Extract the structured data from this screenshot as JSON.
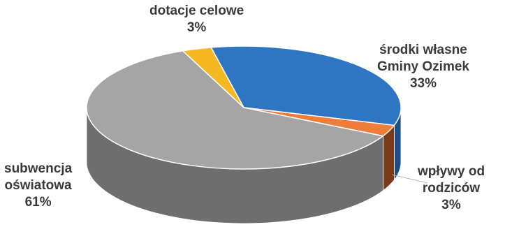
{
  "chart_data": {
    "type": "pie",
    "style": "3d",
    "title": "",
    "legend": "none",
    "slices": [
      {
        "name": "środki własne",
        "name_line2": "Gminy Ozimek",
        "value": 33,
        "label": "33%",
        "color": "#2e75c2",
        "side_color": "#1c4f86"
      },
      {
        "name": "wpływy od",
        "name_line2": "rodziców",
        "value": 3,
        "label": "3%",
        "color": "#ee7d3a",
        "side_color": "#7a3c16"
      },
      {
        "name": "subwencja",
        "name_line2": "oświatowa",
        "value": 61,
        "label": "61%",
        "color": "#a5a5a5",
        "side_color": "#6e6e6e"
      },
      {
        "name": "dotacje celowe",
        "name_line2": "",
        "value": 3,
        "label": "3%",
        "color": "#f5b820",
        "side_color": "#a37812"
      }
    ]
  }
}
